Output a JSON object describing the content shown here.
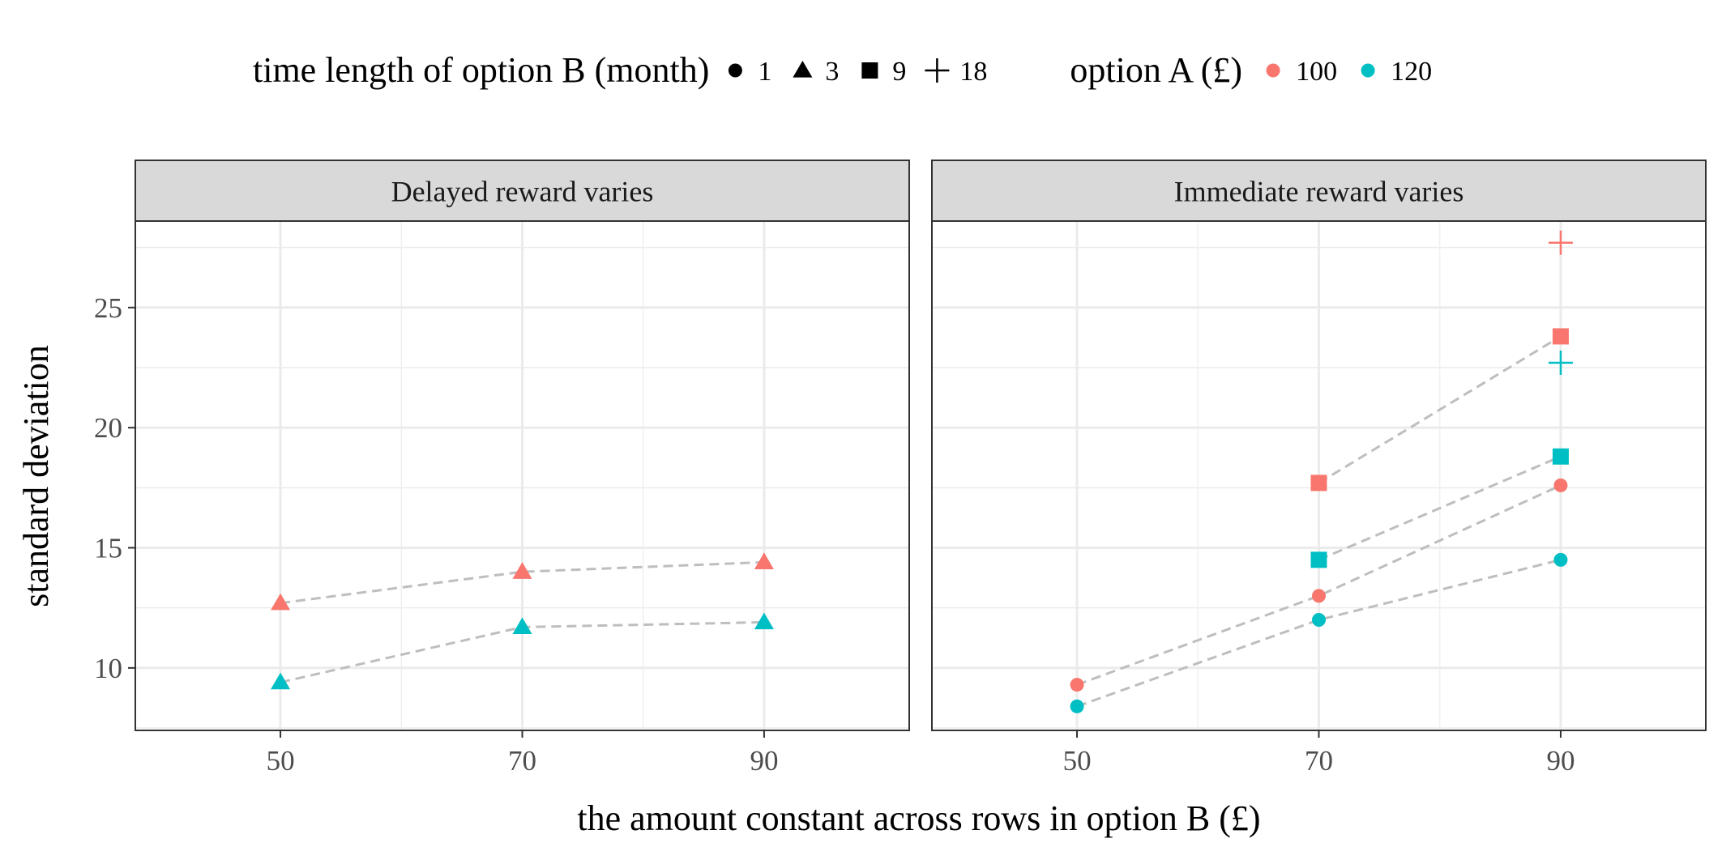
{
  "chart_data": {
    "type": "scatter",
    "xlabel": "the amount constant across rows in option B (£)",
    "ylabel": "standard deviation",
    "xlim": [
      38,
      102
    ],
    "ylim": [
      7.4,
      28.6
    ],
    "xticks": [
      50,
      70,
      90
    ],
    "yticks": [
      10,
      15,
      20,
      25
    ],
    "grid": true,
    "legend_position": "top",
    "legend": {
      "shape": {
        "title": "time length of option B (month)",
        "entries": [
          {
            "label": "1",
            "shape": "circle"
          },
          {
            "label": "3",
            "shape": "triangle"
          },
          {
            "label": "9",
            "shape": "square"
          },
          {
            "label": "18",
            "shape": "plus"
          }
        ]
      },
      "color": {
        "title": "option A (£)",
        "entries": [
          {
            "label": "100",
            "color": "#F8766D"
          },
          {
            "label": "120",
            "color": "#00BFC4"
          }
        ]
      }
    },
    "panels": [
      {
        "title": "Delayed reward varies",
        "series": [
          {
            "months": "3",
            "optionA": "100",
            "shape": "triangle",
            "color": "#F8766D",
            "connected": true,
            "x": [
              50,
              70,
              90
            ],
            "y": [
              12.7,
              14.0,
              14.4
            ]
          },
          {
            "months": "3",
            "optionA": "120",
            "shape": "triangle",
            "color": "#00BFC4",
            "connected": true,
            "x": [
              50,
              70,
              90
            ],
            "y": [
              9.4,
              11.7,
              11.9
            ]
          }
        ]
      },
      {
        "title": "Immediate reward varies",
        "series": [
          {
            "months": "1",
            "optionA": "100",
            "shape": "circle",
            "color": "#F8766D",
            "connected": true,
            "x": [
              50,
              70,
              90
            ],
            "y": [
              9.3,
              13.0,
              17.6
            ]
          },
          {
            "months": "1",
            "optionA": "120",
            "shape": "circle",
            "color": "#00BFC4",
            "connected": true,
            "x": [
              50,
              70,
              90
            ],
            "y": [
              8.4,
              12.0,
              14.5
            ]
          },
          {
            "months": "9",
            "optionA": "100",
            "shape": "square",
            "color": "#F8766D",
            "connected": true,
            "x": [
              70,
              90
            ],
            "y": [
              17.7,
              23.8
            ]
          },
          {
            "months": "9",
            "optionA": "120",
            "shape": "square",
            "color": "#00BFC4",
            "connected": true,
            "x": [
              70,
              90
            ],
            "y": [
              14.5,
              18.8
            ]
          },
          {
            "months": "18",
            "optionA": "100",
            "shape": "plus",
            "color": "#F8766D",
            "connected": false,
            "x": [
              90
            ],
            "y": [
              27.7
            ]
          },
          {
            "months": "18",
            "optionA": "120",
            "shape": "plus",
            "color": "#00BFC4",
            "connected": false,
            "x": [
              90
            ],
            "y": [
              22.7
            ]
          }
        ]
      }
    ],
    "line_color": "#BEBEBE"
  }
}
